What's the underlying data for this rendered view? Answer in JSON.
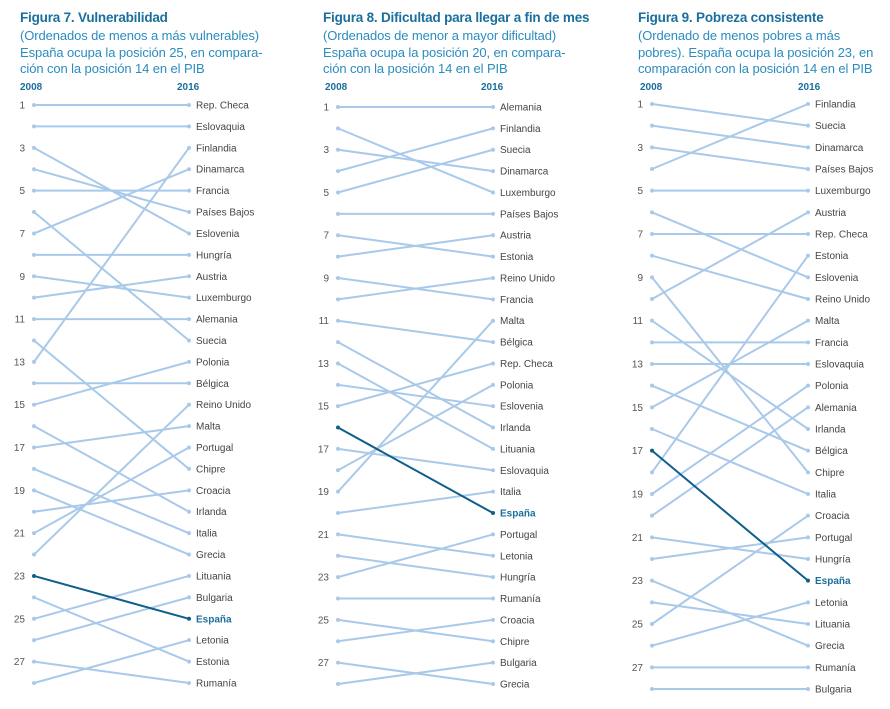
{
  "colors": {
    "line": "#a9c9ea",
    "highlight": "#0e5f8c",
    "title": "#1a6f9c",
    "subtitle": "#2a8cbf"
  },
  "chart_data": [
    {
      "type": "slope",
      "title": "Figura 7. Vulnerabilidad",
      "subtitle": "(Ordenados de menos a más vulnerables) España ocupa la posición 25, en compara-ción con la posición 14 en el PIB",
      "start_label": "2008",
      "end_label": "2016",
      "rank_ticks": [
        1,
        3,
        5,
        7,
        9,
        11,
        13,
        15,
        17,
        19,
        21,
        23,
        25,
        27
      ],
      "highlight": "España",
      "series": [
        {
          "name": "Rep. Checa",
          "rank_2008": 1,
          "rank_2016": 1
        },
        {
          "name": "Eslovaquia",
          "rank_2008": 2,
          "rank_2016": 2
        },
        {
          "name": "Finlandia",
          "rank_2008": 13,
          "rank_2016": 3
        },
        {
          "name": "Dinamarca",
          "rank_2008": 7,
          "rank_2016": 4
        },
        {
          "name": "Francia",
          "rank_2008": 5,
          "rank_2016": 5
        },
        {
          "name": "Países Bajos",
          "rank_2008": 4,
          "rank_2016": 6
        },
        {
          "name": "Eslovenia",
          "rank_2008": 3,
          "rank_2016": 7
        },
        {
          "name": "Hungría",
          "rank_2008": 8,
          "rank_2016": 8
        },
        {
          "name": "Austria",
          "rank_2008": 10,
          "rank_2016": 9
        },
        {
          "name": "Luxemburgo",
          "rank_2008": 9,
          "rank_2016": 10
        },
        {
          "name": "Alemania",
          "rank_2008": 11,
          "rank_2016": 11
        },
        {
          "name": "Suecia",
          "rank_2008": 6,
          "rank_2016": 12
        },
        {
          "name": "Polonia",
          "rank_2008": 15,
          "rank_2016": 13
        },
        {
          "name": "Bélgica",
          "rank_2008": 14,
          "rank_2016": 14
        },
        {
          "name": "Reino Unido",
          "rank_2008": 22,
          "rank_2016": 15
        },
        {
          "name": "Malta",
          "rank_2008": 17,
          "rank_2016": 16
        },
        {
          "name": "Portugal",
          "rank_2008": 21,
          "rank_2016": 17
        },
        {
          "name": "Chipre",
          "rank_2008": 12,
          "rank_2016": 18
        },
        {
          "name": "Croacia",
          "rank_2008": 20,
          "rank_2016": 19
        },
        {
          "name": "Irlanda",
          "rank_2008": 16,
          "rank_2016": 20
        },
        {
          "name": "Italia",
          "rank_2008": 18,
          "rank_2016": 21
        },
        {
          "name": "Grecia",
          "rank_2008": 19,
          "rank_2016": 22
        },
        {
          "name": "Lituania",
          "rank_2008": 25,
          "rank_2016": 23
        },
        {
          "name": "Bulgaria",
          "rank_2008": 26,
          "rank_2016": 24
        },
        {
          "name": "España",
          "rank_2008": 23,
          "rank_2016": 25
        },
        {
          "name": "Letonia",
          "rank_2008": 28,
          "rank_2016": 26
        },
        {
          "name": "Estonia",
          "rank_2008": 24,
          "rank_2016": 27
        },
        {
          "name": "Rumanía",
          "rank_2008": 27,
          "rank_2016": 28
        }
      ]
    },
    {
      "type": "slope",
      "title": "Figura 8. Dificultad para llegar a fin de mes",
      "subtitle": "(Ordenados de menor a mayor dificultad) España ocupa la posición 20, en compara-ción con la posición 14 en el PIB",
      "start_label": "2008",
      "end_label": "2016",
      "rank_ticks": [
        1,
        3,
        5,
        7,
        9,
        11,
        13,
        15,
        17,
        19,
        21,
        23,
        25,
        27
      ],
      "highlight": "España",
      "series": [
        {
          "name": "Alemania",
          "rank_2008": 1,
          "rank_2016": 1
        },
        {
          "name": "Finlandia",
          "rank_2008": 4,
          "rank_2016": 2
        },
        {
          "name": "Suecia",
          "rank_2008": 5,
          "rank_2016": 3
        },
        {
          "name": "Dinamarca",
          "rank_2008": 3,
          "rank_2016": 4
        },
        {
          "name": "Luxemburgo",
          "rank_2008": 2,
          "rank_2016": 5
        },
        {
          "name": "Países Bajos",
          "rank_2008": 6,
          "rank_2016": 6
        },
        {
          "name": "Austria",
          "rank_2008": 8,
          "rank_2016": 7
        },
        {
          "name": "Estonia",
          "rank_2008": 7,
          "rank_2016": 8
        },
        {
          "name": "Reino Unido",
          "rank_2008": 10,
          "rank_2016": 9
        },
        {
          "name": "Francia",
          "rank_2008": 9,
          "rank_2016": 10
        },
        {
          "name": "Malta",
          "rank_2008": 19,
          "rank_2016": 11
        },
        {
          "name": "Bélgica",
          "rank_2008": 11,
          "rank_2016": 12
        },
        {
          "name": "Rep. Checa",
          "rank_2008": 15,
          "rank_2016": 13
        },
        {
          "name": "Polonia",
          "rank_2008": 18,
          "rank_2016": 14
        },
        {
          "name": "Eslovenia",
          "rank_2008": 14,
          "rank_2016": 15
        },
        {
          "name": "Irlanda",
          "rank_2008": 12,
          "rank_2016": 16
        },
        {
          "name": "Lituania",
          "rank_2008": 13,
          "rank_2016": 17
        },
        {
          "name": "Eslovaquia",
          "rank_2008": 17,
          "rank_2016": 18
        },
        {
          "name": "Italia",
          "rank_2008": 20,
          "rank_2016": 19
        },
        {
          "name": "España",
          "rank_2008": 16,
          "rank_2016": 20
        },
        {
          "name": "Portugal",
          "rank_2008": 23,
          "rank_2016": 21
        },
        {
          "name": "Letonia",
          "rank_2008": 21,
          "rank_2016": 22
        },
        {
          "name": "Hungría",
          "rank_2008": 22,
          "rank_2016": 23
        },
        {
          "name": "Rumanía",
          "rank_2008": 24,
          "rank_2016": 24
        },
        {
          "name": "Croacia",
          "rank_2008": 26,
          "rank_2016": 25
        },
        {
          "name": "Chipre",
          "rank_2008": 25,
          "rank_2016": 26
        },
        {
          "name": "Bulgaria",
          "rank_2008": 28,
          "rank_2016": 27
        },
        {
          "name": "Grecia",
          "rank_2008": 27,
          "rank_2016": 28
        }
      ]
    },
    {
      "type": "slope",
      "title": "Figura 9. Pobreza consistente",
      "subtitle": "(Ordenado de menos pobres a más pobres). España ocupa la posición 23, en comparación con la posición 14 en el PIB",
      "start_label": "2008",
      "end_label": "2016",
      "rank_ticks": [
        1,
        3,
        5,
        7,
        9,
        11,
        13,
        15,
        17,
        19,
        21,
        23,
        25,
        27
      ],
      "highlight": "España",
      "series": [
        {
          "name": "Finlandia",
          "rank_2008": 4,
          "rank_2016": 1
        },
        {
          "name": "Suecia",
          "rank_2008": 1,
          "rank_2016": 2
        },
        {
          "name": "Dinamarca",
          "rank_2008": 2,
          "rank_2016": 3
        },
        {
          "name": "Países Bajos",
          "rank_2008": 3,
          "rank_2016": 4
        },
        {
          "name": "Luxemburgo",
          "rank_2008": 5,
          "rank_2016": 5
        },
        {
          "name": "Austria",
          "rank_2008": 10,
          "rank_2016": 6
        },
        {
          "name": "Rep. Checa",
          "rank_2008": 7,
          "rank_2016": 7
        },
        {
          "name": "Estonia",
          "rank_2008": 18,
          "rank_2016": 8
        },
        {
          "name": "Eslovenia",
          "rank_2008": 6,
          "rank_2016": 9
        },
        {
          "name": "Reino Unido",
          "rank_2008": 8,
          "rank_2016": 10
        },
        {
          "name": "Malta",
          "rank_2008": 15,
          "rank_2016": 11
        },
        {
          "name": "Francia",
          "rank_2008": 12,
          "rank_2016": 12
        },
        {
          "name": "Eslovaquia",
          "rank_2008": 13,
          "rank_2016": 13
        },
        {
          "name": "Polonia",
          "rank_2008": 19,
          "rank_2016": 14
        },
        {
          "name": "Alemania",
          "rank_2008": 20,
          "rank_2016": 15
        },
        {
          "name": "Irlanda",
          "rank_2008": 11,
          "rank_2016": 16
        },
        {
          "name": "Bélgica",
          "rank_2008": 14,
          "rank_2016": 17
        },
        {
          "name": "Chipre",
          "rank_2008": 9,
          "rank_2016": 18
        },
        {
          "name": "Italia",
          "rank_2008": 16,
          "rank_2016": 19
        },
        {
          "name": "Croacia",
          "rank_2008": 25,
          "rank_2016": 20
        },
        {
          "name": "Portugal",
          "rank_2008": 22,
          "rank_2016": 21
        },
        {
          "name": "Hungría",
          "rank_2008": 21,
          "rank_2016": 22
        },
        {
          "name": "España",
          "rank_2008": 17,
          "rank_2016": 23
        },
        {
          "name": "Letonia",
          "rank_2008": 26,
          "rank_2016": 24
        },
        {
          "name": "Lituania",
          "rank_2008": 24,
          "rank_2016": 25
        },
        {
          "name": "Grecia",
          "rank_2008": 23,
          "rank_2016": 26
        },
        {
          "name": "Rumanía",
          "rank_2008": 27,
          "rank_2016": 27
        },
        {
          "name": "Bulgaria",
          "rank_2008": 28,
          "rank_2016": 28
        }
      ]
    }
  ]
}
